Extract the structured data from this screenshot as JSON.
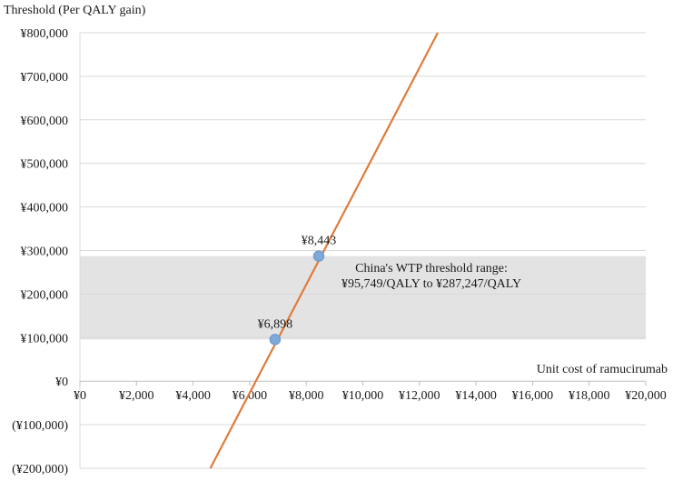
{
  "chart_data": {
    "type": "line",
    "title": "",
    "ylabel": "Threshold (Per QALY gain)",
    "xlabel": "Unit cost of ramucirumab",
    "xlim": [
      0,
      20000
    ],
    "ylim": [
      -200000,
      800000
    ],
    "x_ticks": [
      0,
      2000,
      4000,
      6000,
      8000,
      10000,
      12000,
      14000,
      16000,
      18000,
      20000
    ],
    "x_tick_labels": [
      "¥0",
      "¥2,000",
      "¥4,000",
      "¥6,000",
      "¥8,000",
      "¥10,000",
      "¥12,000",
      "¥14,000",
      "¥16,000",
      "¥18,000",
      "¥20,000"
    ],
    "y_ticks": [
      -200000,
      -100000,
      0,
      100000,
      200000,
      300000,
      400000,
      500000,
      600000,
      700000,
      800000
    ],
    "y_tick_labels": [
      "(¥200,000)",
      "(¥100,000)",
      "¥0",
      "¥100,000",
      "¥200,000",
      "¥300,000",
      "¥400,000",
      "¥500,000",
      "¥600,000",
      "¥700,000",
      "¥800,000"
    ],
    "grid": true,
    "series": [
      {
        "x": [
          4610,
          12650
        ],
        "y": [
          -200000,
          800000
        ],
        "color": "#e07b39"
      }
    ],
    "highlight_points": [
      {
        "x": 6898,
        "y": 95749,
        "label": "¥6,898"
      },
      {
        "x": 8443,
        "y": 287247,
        "label": "¥8,443"
      }
    ],
    "shaded_band": {
      "y_range": [
        95749,
        287247
      ],
      "color": "#e3e3e3",
      "label_lines": [
        "China's WTP threshold range:",
        "¥95,749/QALY to ¥287,247/QALY"
      ]
    },
    "point_color": "#7eaad8"
  }
}
